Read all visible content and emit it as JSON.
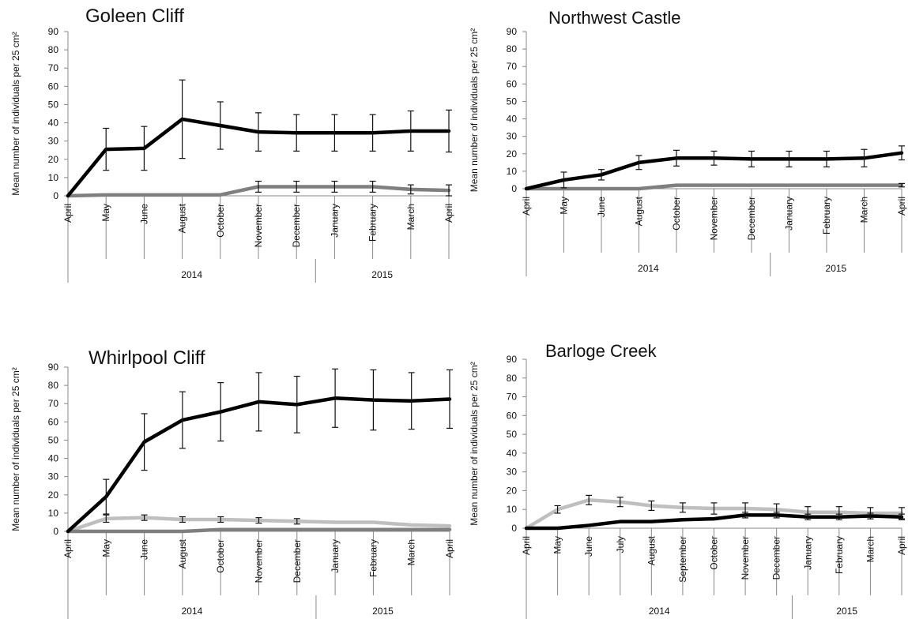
{
  "chart_data": [
    {
      "type": "line",
      "title": "Goleen Cliff",
      "ylabel": "Mean number of individuals per 25 cm²",
      "ylim": [
        0,
        90
      ],
      "yticks": [
        0,
        10,
        20,
        30,
        40,
        50,
        60,
        70,
        80,
        90
      ],
      "categories": [
        "April",
        "May",
        "June",
        "August",
        "October",
        "November",
        "December",
        "January",
        "February",
        "March",
        "April"
      ],
      "years": [
        {
          "label": "2014",
          "span": 7
        },
        {
          "label": "2015",
          "span": 4
        }
      ],
      "series": [
        {
          "color": "#000000",
          "values": [
            0,
            25.5,
            26,
            42,
            38.5,
            35,
            34.5,
            34.5,
            34.5,
            35.5,
            35.5
          ],
          "errors": [
            0,
            11.5,
            12,
            21.5,
            13,
            10.5,
            10,
            10,
            10,
            11,
            11.5
          ]
        },
        {
          "color": "#7f7f7f",
          "values": [
            0,
            0.5,
            0.5,
            0.5,
            0.5,
            5,
            5,
            5,
            5,
            3.5,
            3
          ],
          "errors": [
            0,
            0,
            0,
            0,
            0,
            3,
            3,
            3,
            3,
            2.5,
            3
          ]
        }
      ]
    },
    {
      "type": "line",
      "title": "Northwest Castle",
      "ylabel": "Mean number of individuals per 25 cm²",
      "ylim": [
        0,
        90
      ],
      "yticks": [
        0,
        10,
        20,
        30,
        40,
        50,
        60,
        70,
        80,
        90
      ],
      "categories": [
        "April",
        "May",
        "June",
        "August",
        "October",
        "November",
        "December",
        "January",
        "February",
        "March",
        "April"
      ],
      "years": [
        {
          "label": "2014",
          "span": 7
        },
        {
          "label": "2015",
          "span": 4
        }
      ],
      "series": [
        {
          "color": "#000000",
          "values": [
            0,
            5,
            8,
            15,
            17.5,
            17.5,
            17,
            17,
            17,
            17.5,
            20.5
          ],
          "errors": [
            0,
            4.5,
            3,
            4,
            4.5,
            4,
            4.5,
            4.5,
            4.5,
            5,
            4
          ]
        },
        {
          "color": "#7f7f7f",
          "values": [
            0,
            0,
            0,
            0,
            2,
            2,
            2,
            2,
            2,
            2,
            2
          ],
          "errors": [
            0,
            0,
            0,
            0,
            0,
            0,
            0,
            0,
            0,
            0,
            1
          ]
        }
      ]
    },
    {
      "type": "line",
      "title": "Whirlpool Cliff",
      "ylabel": "Mean number of individuals per 25 cm²",
      "ylim": [
        0,
        90
      ],
      "yticks": [
        0,
        10,
        20,
        30,
        40,
        50,
        60,
        70,
        80,
        90
      ],
      "categories": [
        "April",
        "May",
        "June",
        "August",
        "October",
        "November",
        "December",
        "January",
        "February",
        "March",
        "April"
      ],
      "years": [
        {
          "label": "2014",
          "span": 7
        },
        {
          "label": "2015",
          "span": 4
        }
      ],
      "series": [
        {
          "color": "#000000",
          "values": [
            0,
            19,
            49,
            61,
            65.5,
            71,
            69.5,
            73,
            72,
            71.5,
            72.5
          ],
          "errors": [
            0,
            9.5,
            15.5,
            15.5,
            16,
            16,
            15.5,
            16,
            16.5,
            15.5,
            16
          ]
        },
        {
          "color": "#bfbfbf",
          "values": [
            0,
            7,
            7.5,
            6.5,
            6.5,
            6,
            5.5,
            5,
            5,
            3.5,
            3
          ],
          "errors": [
            0,
            2,
            1.5,
            1.5,
            1.5,
            1.5,
            1.5,
            0,
            0,
            0,
            0
          ]
        },
        {
          "color": "#7f7f7f",
          "values": [
            0,
            0,
            0,
            0,
            1,
            1,
            1,
            1,
            1,
            1,
            1
          ],
          "errors": [
            0,
            0,
            0,
            0,
            0,
            0,
            0,
            0,
            0,
            0,
            0
          ]
        }
      ]
    },
    {
      "type": "line",
      "title": "Barloge Creek",
      "ylabel": "Mean number of individuals per 25 cm²",
      "ylim": [
        0,
        90
      ],
      "yticks": [
        0,
        10,
        20,
        30,
        40,
        50,
        60,
        70,
        80,
        90
      ],
      "categories": [
        "April",
        "May",
        "June",
        "July",
        "August",
        "September",
        "October",
        "November",
        "December",
        "January",
        "February",
        "March",
        "April"
      ],
      "years": [
        {
          "label": "2014",
          "span": 9
        },
        {
          "label": "2015",
          "span": 4
        }
      ],
      "series": [
        {
          "color": "#bfbfbf",
          "values": [
            0,
            10,
            15,
            14,
            12,
            11,
            10.5,
            10.5,
            10,
            8.5,
            8.5,
            8,
            8
          ],
          "errors": [
            0,
            2,
            2.5,
            2.5,
            2.5,
            2.5,
            3,
            3,
            3,
            3,
            3,
            3,
            3
          ]
        },
        {
          "color": "#000000",
          "values": [
            0,
            0,
            1.5,
            3.5,
            3.5,
            4.5,
            5,
            7,
            7,
            6,
            6,
            6.5,
            6
          ],
          "errors": [
            0,
            0,
            0,
            0,
            0,
            0,
            0,
            1.5,
            1.5,
            1.5,
            1.5,
            1.5,
            1.5
          ]
        }
      ]
    }
  ]
}
